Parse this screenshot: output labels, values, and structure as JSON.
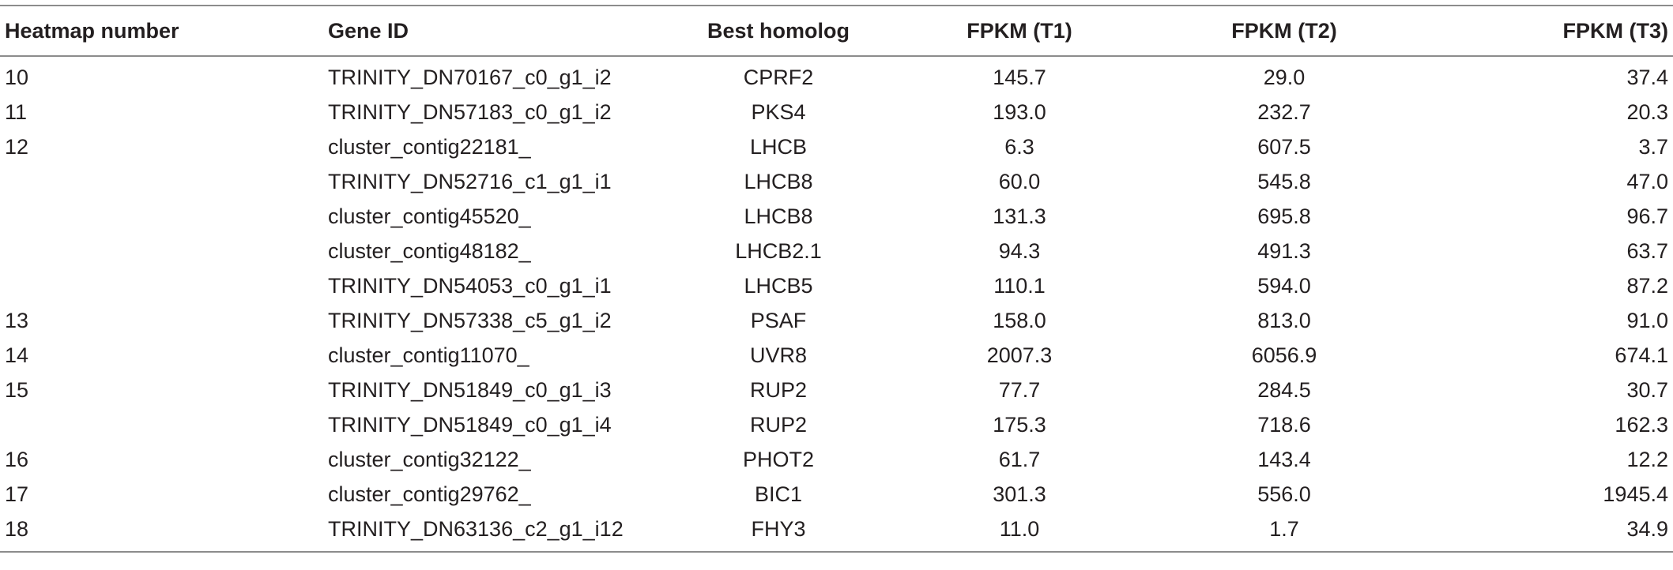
{
  "table": {
    "headers": {
      "heatmap": "Heatmap number",
      "gene": "Gene ID",
      "homolog": "Best homolog",
      "t1": "FPKM (T1)",
      "t2": "FPKM (T2)",
      "t3": "FPKM (T3)"
    },
    "rows": [
      {
        "heatmap": "10",
        "gene": "TRINITY_DN70167_c0_g1_i2",
        "homolog": "CPRF2",
        "t1": "145.7",
        "t2": "29.0",
        "t3": "37.4"
      },
      {
        "heatmap": "11",
        "gene": "TRINITY_DN57183_c0_g1_i2",
        "homolog": "PKS4",
        "t1": "193.0",
        "t2": "232.7",
        "t3": "20.3"
      },
      {
        "heatmap": "12",
        "gene": "cluster_contig22181_",
        "homolog": "LHCB",
        "t1": "6.3",
        "t2": "607.5",
        "t3": "3.7"
      },
      {
        "heatmap": "",
        "gene": "TRINITY_DN52716_c1_g1_i1",
        "homolog": "LHCB8",
        "t1": "60.0",
        "t2": "545.8",
        "t3": "47.0"
      },
      {
        "heatmap": "",
        "gene": "cluster_contig45520_",
        "homolog": "LHCB8",
        "t1": "131.3",
        "t2": "695.8",
        "t3": "96.7"
      },
      {
        "heatmap": "",
        "gene": "cluster_contig48182_",
        "homolog": "LHCB2.1",
        "t1": "94.3",
        "t2": "491.3",
        "t3": "63.7"
      },
      {
        "heatmap": "",
        "gene": "TRINITY_DN54053_c0_g1_i1",
        "homolog": "LHCB5",
        "t1": "110.1",
        "t2": "594.0",
        "t3": "87.2"
      },
      {
        "heatmap": "13",
        "gene": "TRINITY_DN57338_c5_g1_i2",
        "homolog": "PSAF",
        "t1": "158.0",
        "t2": "813.0",
        "t3": "91.0"
      },
      {
        "heatmap": "14",
        "gene": "cluster_contig11070_",
        "homolog": "UVR8",
        "t1": "2007.3",
        "t2": "6056.9",
        "t3": "674.1"
      },
      {
        "heatmap": "15",
        "gene": "TRINITY_DN51849_c0_g1_i3",
        "homolog": "RUP2",
        "t1": "77.7",
        "t2": "284.5",
        "t3": "30.7"
      },
      {
        "heatmap": "",
        "gene": "TRINITY_DN51849_c0_g1_i4",
        "homolog": "RUP2",
        "t1": "175.3",
        "t2": "718.6",
        "t3": "162.3"
      },
      {
        "heatmap": "16",
        "gene": "cluster_contig32122_",
        "homolog": "PHOT2",
        "t1": "61.7",
        "t2": "143.4",
        "t3": "12.2"
      },
      {
        "heatmap": "17",
        "gene": "cluster_contig29762_",
        "homolog": "BIC1",
        "t1": "301.3",
        "t2": "556.0",
        "t3": "1945.4"
      },
      {
        "heatmap": "18",
        "gene": "TRINITY_DN63136_c2_g1_i12",
        "homolog": "FHY3",
        "t1": "11.0",
        "t2": "1.7",
        "t3": "34.9"
      }
    ]
  }
}
